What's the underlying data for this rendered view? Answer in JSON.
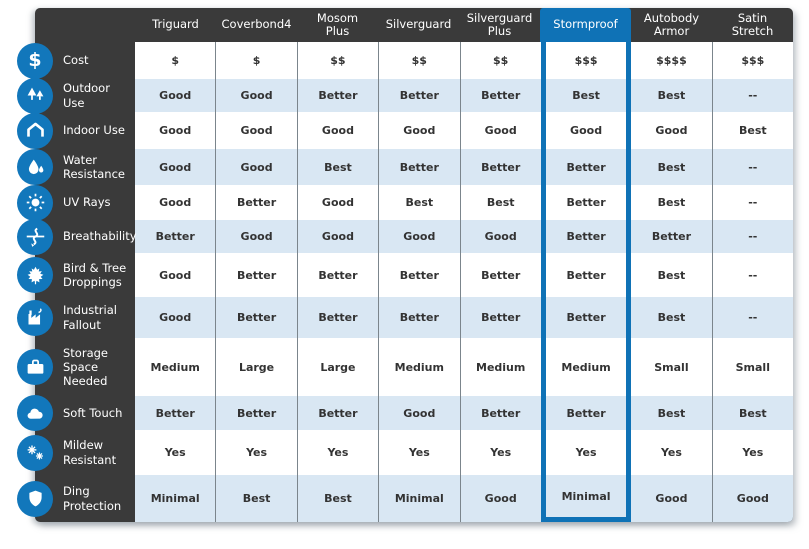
{
  "colors": {
    "accent_blue": "#0f72b6",
    "icon_circle_blue": "#1277bb",
    "card_background": "#3a3a3a",
    "alt_row_blue": "#d9e7f3",
    "grid_line": "#7b858c",
    "cell_text": "#333333",
    "header_text": "#ffffff"
  },
  "chart_data": {
    "type": "table",
    "title": "",
    "columns": [
      {
        "label": "Triguard",
        "highlight": false
      },
      {
        "label": "Coverbond4",
        "highlight": false
      },
      {
        "label": "Mosom\nPlus",
        "highlight": false
      },
      {
        "label": "Silverguard",
        "highlight": false
      },
      {
        "label": "Silverguard\nPlus",
        "highlight": false
      },
      {
        "label": "Stormproof",
        "highlight": true
      },
      {
        "label": "Autobody\nArmor",
        "highlight": false
      },
      {
        "label": "Satin\nStretch",
        "highlight": false
      }
    ],
    "rows": [
      {
        "label": "Cost",
        "icon": "dollar-icon",
        "values": [
          "$",
          "$",
          "$$",
          "$$",
          "$$",
          "$$$",
          "$$$$",
          "$$$"
        ]
      },
      {
        "label": "Outdoor Use",
        "icon": "trees-icon",
        "values": [
          "Good",
          "Good",
          "Better",
          "Better",
          "Better",
          "Best",
          "Best",
          "--"
        ]
      },
      {
        "label": "Indoor Use",
        "icon": "garage-icon",
        "values": [
          "Good",
          "Good",
          "Good",
          "Good",
          "Good",
          "Good",
          "Good",
          "Best"
        ]
      },
      {
        "label": "Water\nResistance",
        "icon": "water-drops-icon",
        "values": [
          "Good",
          "Good",
          "Best",
          "Better",
          "Better",
          "Better",
          "Best",
          "--"
        ]
      },
      {
        "label": "UV Rays",
        "icon": "sun-icon",
        "values": [
          "Good",
          "Better",
          "Good",
          "Best",
          "Best",
          "Better",
          "Best",
          "--"
        ]
      },
      {
        "label": "Breathability",
        "icon": "airflow-icon",
        "values": [
          "Better",
          "Good",
          "Good",
          "Good",
          "Good",
          "Better",
          "Better",
          "--"
        ]
      },
      {
        "label": "Bird & Tree\nDroppings",
        "icon": "maple-leaf-icon",
        "values": [
          "Good",
          "Better",
          "Better",
          "Better",
          "Better",
          "Better",
          "Best",
          "--"
        ]
      },
      {
        "label": "Industrial\nFallout",
        "icon": "factory-icon",
        "values": [
          "Good",
          "Better",
          "Better",
          "Better",
          "Better",
          "Better",
          "Best",
          "--"
        ]
      },
      {
        "label": "Storage\nSpace\nNeeded",
        "icon": "suitcase-icon",
        "values": [
          "Medium",
          "Large",
          "Large",
          "Medium",
          "Medium",
          "Medium",
          "Small",
          "Small"
        ]
      },
      {
        "label": "Soft Touch",
        "icon": "cloud-icon",
        "values": [
          "Better",
          "Better",
          "Better",
          "Good",
          "Better",
          "Better",
          "Best",
          "Best"
        ]
      },
      {
        "label": "Mildew\nResistant",
        "icon": "spores-icon",
        "values": [
          "Yes",
          "Yes",
          "Yes",
          "Yes",
          "Yes",
          "Yes",
          "Yes",
          "Yes"
        ]
      },
      {
        "label": "Ding\nProtection",
        "icon": "shield-icon",
        "values": [
          "Minimal",
          "Best",
          "Best",
          "Minimal",
          "Good",
          "Minimal",
          "Good",
          "Good"
        ]
      }
    ]
  }
}
